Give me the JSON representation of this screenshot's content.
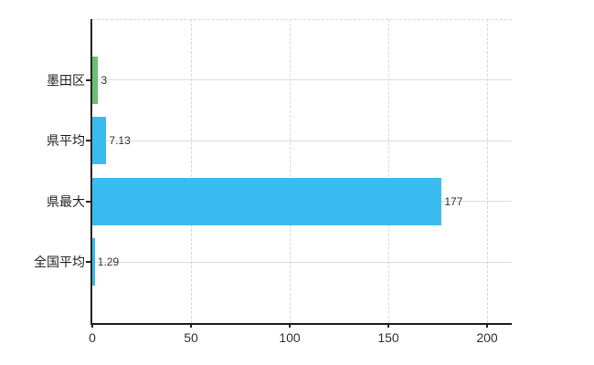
{
  "chart": {
    "background_color": "#ffffff",
    "axis_color": "#222222",
    "horizontal_grid_color": "#d8e0d8",
    "vertical_grid_color": "#d9d9d9",
    "text_color": "#333333",
    "accent_blue": "#3bbcf0",
    "accent_green": "#69c16e"
  },
  "chart_data": {
    "type": "bar",
    "orientation": "horizontal",
    "title": "",
    "xlabel": "",
    "ylabel": "",
    "categories": [
      "墨田区",
      "県平均",
      "県最大",
      "全国平均"
    ],
    "values": [
      3,
      7.13,
      177,
      1.29
    ],
    "value_labels": [
      "3",
      "7.13",
      "177",
      "1.29"
    ],
    "bar_colors": [
      "#69c16e",
      "#3bbcf0",
      "#3bbcf0",
      "#3bbcf0"
    ],
    "xlim": [
      0,
      212.5
    ],
    "xticks": [
      0,
      50,
      100,
      150,
      200
    ],
    "xtick_labels": [
      "0",
      "50",
      "100",
      "150",
      "200"
    ],
    "grid": true,
    "legend": false
  }
}
